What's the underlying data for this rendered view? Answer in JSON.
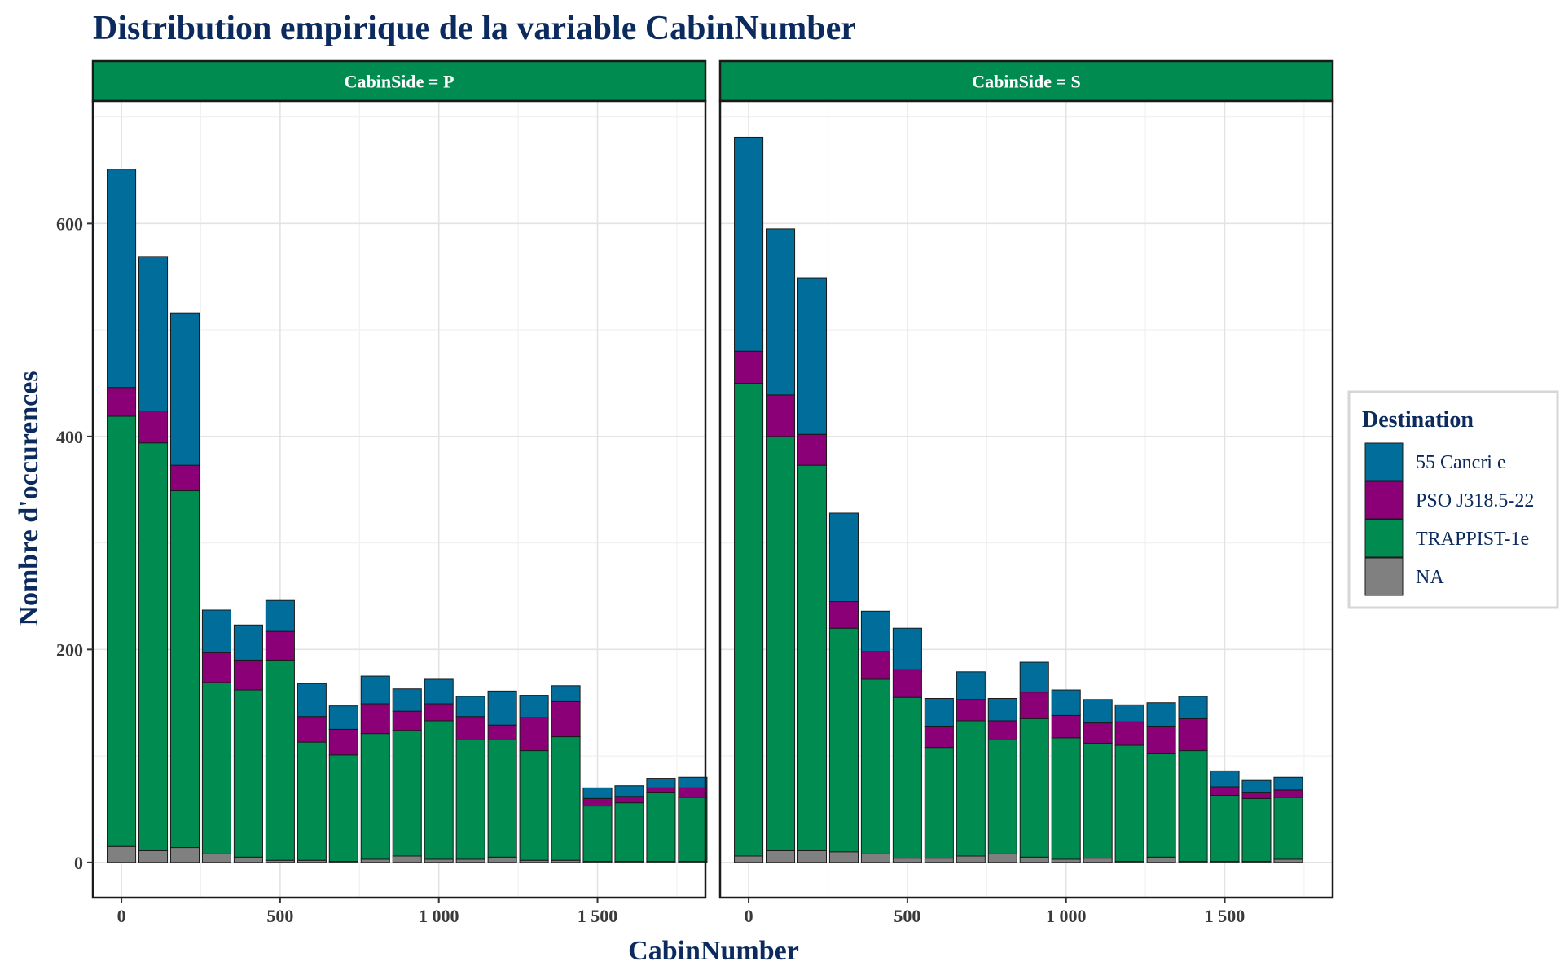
{
  "chart_data": {
    "type": "bar",
    "stacked": true,
    "title": "Distribution empirique de la variable CabinNumber",
    "xlabel": "CabinNumber",
    "ylabel": "Nombre d'occurences",
    "xlim": [
      -90,
      1840
    ],
    "ylim": [
      -33,
      715
    ],
    "x_ticks": [
      0,
      500,
      1000,
      1500
    ],
    "x_tick_labels": [
      "0",
      "500",
      "1 000",
      "1 500"
    ],
    "y_ticks": [
      0,
      200,
      400,
      600
    ],
    "y_tick_labels": [
      "0",
      "200",
      "400",
      "600"
    ],
    "grid": true,
    "bin_width": 100,
    "legend": {
      "title": "Destination",
      "position": "right",
      "items": [
        {
          "label": "55 Cancri e",
          "color": "#006d9b"
        },
        {
          "label": "PSO J318.5-22",
          "color": "#8c0077"
        },
        {
          "label": "TRAPPIST-1e",
          "color": "#008b50"
        },
        {
          "label": "NA",
          "color": "#808080"
        }
      ]
    },
    "stack_order": [
      "NA",
      "TRAPPIST-1e",
      "PSO J318.5-22",
      "55 Cancri e"
    ],
    "panels": [
      {
        "label": "CabinSide = P",
        "x": [
          0,
          100,
          200,
          300,
          400,
          500,
          600,
          700,
          800,
          900,
          1000,
          1100,
          1200,
          1300,
          1400,
          1500,
          1600,
          1700,
          1800
        ],
        "series": [
          {
            "name": "NA",
            "values": [
              15,
              11,
              14,
              8,
              5,
              2,
              2,
              1,
              3,
              6,
              3,
              3,
              5,
              2,
              2,
              1,
              1,
              1,
              1
            ]
          },
          {
            "name": "TRAPPIST-1e",
            "values": [
              404,
              383,
              335,
              161,
              157,
              188,
              111,
              100,
              118,
              118,
              130,
              112,
              110,
              103,
              116,
              52,
              55,
              65,
              60
            ]
          },
          {
            "name": "PSO J318.5-22",
            "values": [
              27,
              30,
              24,
              28,
              28,
              27,
              24,
              24,
              28,
              18,
              16,
              22,
              14,
              31,
              33,
              7,
              6,
              4,
              9
            ]
          },
          {
            "name": "55 Cancri e",
            "values": [
              205,
              145,
              143,
              40,
              33,
              29,
              31,
              22,
              26,
              21,
              23,
              19,
              32,
              21,
              15,
              10,
              10,
              9,
              10
            ]
          }
        ]
      },
      {
        "label": "CabinSide = S",
        "x": [
          0,
          100,
          200,
          300,
          400,
          500,
          600,
          700,
          800,
          900,
          1000,
          1100,
          1200,
          1300,
          1400,
          1500,
          1600,
          1700
        ],
        "series": [
          {
            "name": "NA",
            "values": [
              6,
              11,
              11,
              10,
              8,
              4,
              4,
              6,
              8,
              5,
              3,
              4,
              1,
              5,
              1,
              1,
              1,
              3
            ]
          },
          {
            "name": "TRAPPIST-1e",
            "values": [
              444,
              389,
              362,
              210,
              164,
              151,
              104,
              127,
              107,
              130,
              114,
              108,
              109,
              97,
              104,
              62,
              59,
              58
            ]
          },
          {
            "name": "PSO J318.5-22",
            "values": [
              30,
              39,
              29,
              25,
              26,
              26,
              20,
              20,
              18,
              25,
              21,
              19,
              22,
              26,
              30,
              8,
              6,
              7
            ]
          },
          {
            "name": "55 Cancri e",
            "values": [
              201,
              156,
              147,
              83,
              38,
              39,
              26,
              26,
              21,
              28,
              24,
              22,
              16,
              22,
              21,
              15,
              11,
              12
            ]
          }
        ]
      }
    ]
  }
}
